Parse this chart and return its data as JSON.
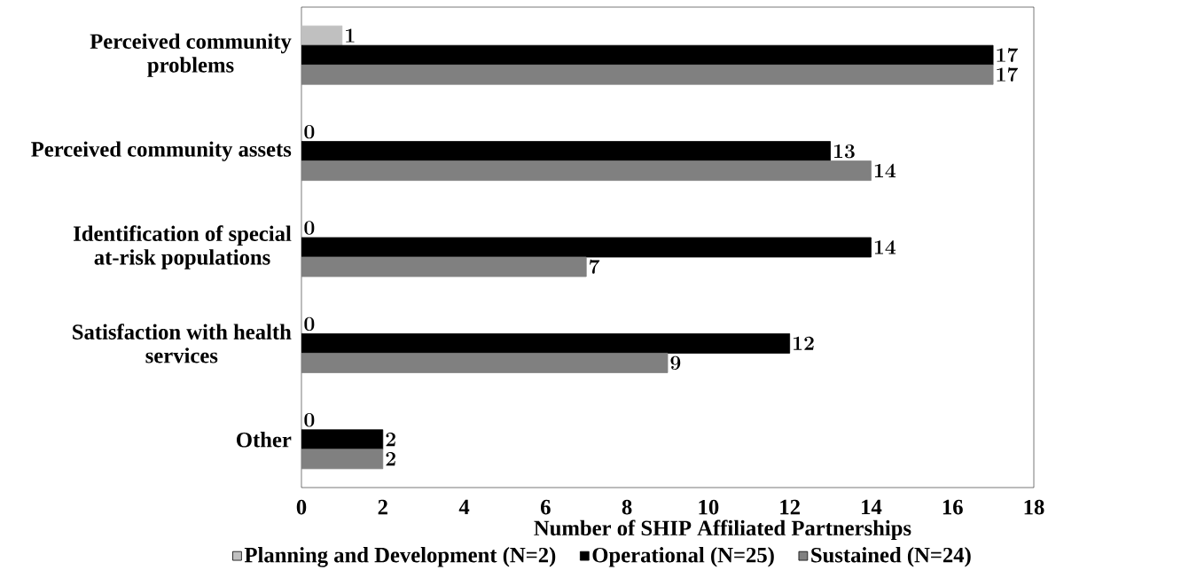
{
  "chart_data": {
    "type": "bar",
    "orientation": "horizontal",
    "xlabel": "Number of SHIP Affiliated Partnerships",
    "categories": [
      "Perceived community problems",
      "Perceived community assets",
      "Identification of special at-risk populations",
      "Satisfaction with health services",
      "Other"
    ],
    "series": [
      {
        "name": "Planning and Development (N=2)",
        "color": "#c0c0c0",
        "values": [
          1,
          0,
          0,
          0,
          0
        ]
      },
      {
        "name": "Operational (N=25)",
        "color": "#000000",
        "values": [
          17,
          13,
          14,
          12,
          2
        ]
      },
      {
        "name": "Sustained (N=24)",
        "color": "#808080",
        "values": [
          17,
          14,
          7,
          9,
          2
        ]
      }
    ],
    "xlim": [
      0,
      18
    ],
    "xticks": [
      0,
      2,
      4,
      6,
      8,
      10,
      12,
      14,
      16,
      18
    ],
    "data_labels": true,
    "grid": false,
    "legend": "bottom"
  }
}
